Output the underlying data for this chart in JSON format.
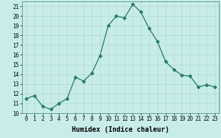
{
  "x": [
    0,
    1,
    2,
    3,
    4,
    5,
    6,
    7,
    8,
    9,
    10,
    11,
    12,
    13,
    14,
    15,
    16,
    17,
    18,
    19,
    20,
    21,
    22,
    23
  ],
  "y": [
    11.5,
    11.8,
    10.7,
    10.4,
    11.0,
    11.5,
    13.7,
    13.3,
    14.1,
    15.9,
    19.0,
    20.0,
    19.8,
    21.2,
    20.4,
    18.7,
    17.4,
    15.3,
    14.5,
    13.9,
    13.8,
    12.7,
    12.9,
    12.7
  ],
  "xlabel": "Humidex (Indice chaleur)",
  "xlim": [
    -0.5,
    23.5
  ],
  "ylim": [
    10,
    21.5
  ],
  "yticks": [
    10,
    11,
    12,
    13,
    14,
    15,
    16,
    17,
    18,
    19,
    20,
    21
  ],
  "xticks": [
    0,
    1,
    2,
    3,
    4,
    5,
    6,
    7,
    8,
    9,
    10,
    11,
    12,
    13,
    14,
    15,
    16,
    17,
    18,
    19,
    20,
    21,
    22,
    23
  ],
  "line_color": "#2a7d6e",
  "marker": "D",
  "marker_size": 2.2,
  "bg_color": "#c8ecea",
  "grid_color": "#b0d8d0",
  "xlabel_fontsize": 7,
  "tick_fontsize": 5.5,
  "line_width": 1.0
}
